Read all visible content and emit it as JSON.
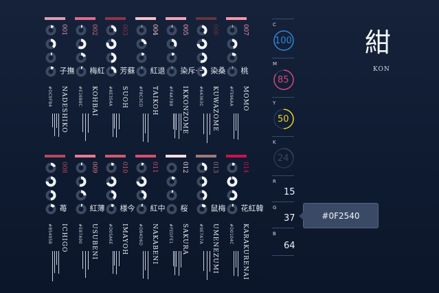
{
  "colors": [
    {
      "num": "001",
      "kanji": "撫子",
      "hex": "#DC9FB4",
      "roman": "NADESHIKO",
      "bar": "#DC9FB4",
      "numColor": "#DC9FB4",
      "cmyk": [
        0.1,
        0.4,
        0.05,
        0.1
      ]
    },
    {
      "num": "002",
      "kanji": "紅梅",
      "hex": "#E16B8C",
      "roman": "KOHBAI",
      "bar": "#E16B8C",
      "numColor": "#E16B8C",
      "cmyk": [
        0.05,
        0.6,
        0.2,
        0.05
      ]
    },
    {
      "num": "003",
      "kanji": "蘇芳",
      "hex": "#8E354A",
      "roman": "SUOH",
      "bar": "#8E354A",
      "numColor": "#8E354A",
      "cmyk": [
        0.3,
        0.8,
        0.5,
        0.3
      ]
    },
    {
      "num": "004",
      "kanji": "退紅",
      "hex": "#F8C3CD",
      "roman": "TAIKOH",
      "bar": "#F8C3CD",
      "numColor": "#F8C3CD",
      "cmyk": [
        0.02,
        0.25,
        0.1,
        0.02
      ]
    },
    {
      "num": "005",
      "kanji": "一斥染",
      "hex": "#F4A7B9",
      "roman": "IKKONZOME",
      "bar": "#F4A7B9",
      "numColor": "#F4A7B9",
      "cmyk": [
        0.03,
        0.35,
        0.1,
        0.02
      ]
    },
    {
      "num": "006",
      "kanji": "桑染",
      "hex": "#64363C",
      "roman": "KUWAZOME",
      "bar": "#64363C",
      "numColor": "#64363C",
      "cmyk": [
        0.4,
        0.75,
        0.55,
        0.5
      ]
    },
    {
      "num": "007",
      "kanji": "桃",
      "hex": "#F596AA",
      "roman": "MOMO",
      "bar": "#F596AA",
      "numColor": "#F596AA",
      "cmyk": [
        0.02,
        0.45,
        0.15,
        0.02
      ]
    },
    {
      "num": "008",
      "kanji": "苺",
      "hex": "#B5495B",
      "roman": "ICHIGO",
      "bar": "#B5495B",
      "numColor": "#B5495B",
      "cmyk": [
        0.2,
        0.75,
        0.5,
        0.15
      ]
    },
    {
      "num": "009",
      "kanji": "薄紅",
      "hex": "#E87A90",
      "roman": "USUBENI",
      "bar": "#E87A90",
      "numColor": "#E87A90",
      "cmyk": [
        0.05,
        0.55,
        0.25,
        0.05
      ]
    },
    {
      "num": "010",
      "kanji": "今様",
      "hex": "#D05A6E",
      "roman": "IMAYOH",
      "bar": "#D05A6E",
      "numColor": "#D05A6E",
      "cmyk": [
        0.1,
        0.7,
        0.4,
        0.1
      ]
    },
    {
      "num": "011",
      "kanji": "中紅",
      "hex": "#DB4D6D",
      "roman": "NAKABENI",
      "bar": "#DB4D6D",
      "numColor": "#DB4D6D",
      "cmyk": [
        0.08,
        0.75,
        0.4,
        0.05
      ]
    },
    {
      "num": "012",
      "kanji": "桜",
      "hex": "#FEDFE1",
      "roman": "SAKURA",
      "bar": "#FEDFE1",
      "numColor": "#FEDFE1",
      "cmyk": [
        0.0,
        0.12,
        0.05,
        0.0
      ]
    },
    {
      "num": "013",
      "kanji": "梅鼠",
      "hex": "#9E7A7A",
      "roman": "UMENEZUMI",
      "bar": "#9E7A7A",
      "numColor": "#9E7A7A",
      "cmyk": [
        0.35,
        0.5,
        0.45,
        0.15
      ]
    },
    {
      "num": "014",
      "kanji": "韓紅花",
      "hex": "#D0104C",
      "roman": "KARAKURENAI",
      "bar": "#D0104C",
      "numColor": "#D0104C",
      "cmyk": [
        0.1,
        0.95,
        0.6,
        0.05
      ]
    }
  ],
  "selected": {
    "kanji": "紺",
    "roman": "KON",
    "hex": "#0F2540",
    "cmyk": {
      "C": {
        "label": "C",
        "value": "100",
        "fraction": 1.0,
        "color": "#2f87d6"
      },
      "M": {
        "label": "M",
        "value": "85",
        "fraction": 0.85,
        "color": "#d04a7a"
      },
      "Y": {
        "label": "Y",
        "value": "50",
        "fraction": 0.5,
        "color": "#e8d52a"
      },
      "K": {
        "label": "K",
        "value": "24",
        "fraction": 0.24,
        "color": "#3a465a"
      }
    },
    "rgb": {
      "R": {
        "label": "R",
        "value": "15"
      },
      "G": {
        "label": "G",
        "value": "37"
      },
      "B": {
        "label": "B",
        "value": "64"
      }
    }
  },
  "tooltip": {
    "text": "#0F2540"
  }
}
